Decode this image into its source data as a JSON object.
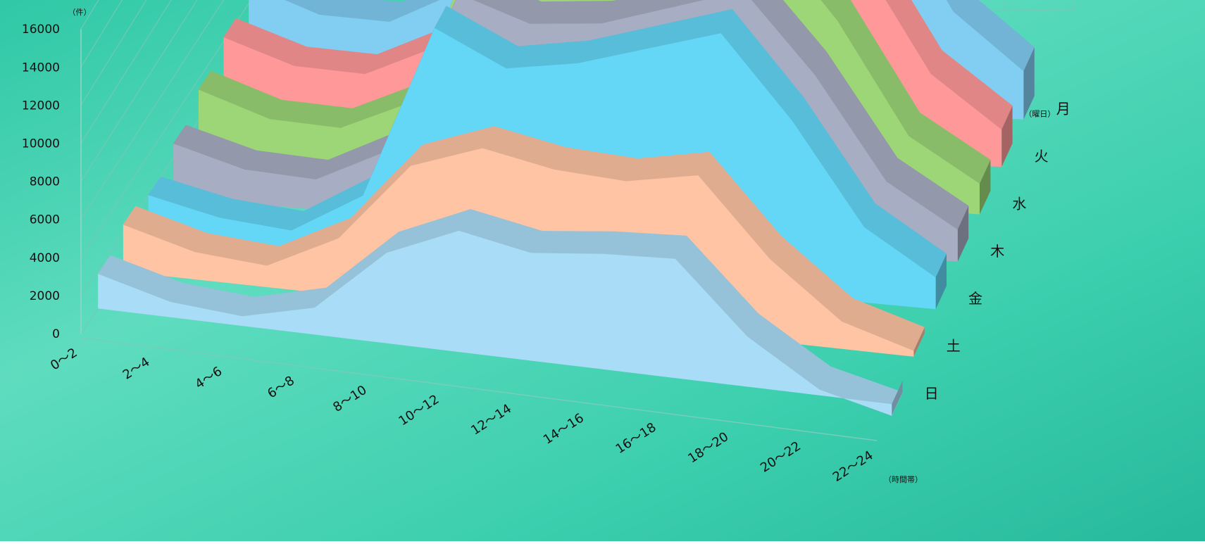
{
  "chart_data": {
    "type": "area",
    "title": "",
    "y_unit_label": "（件）",
    "x_axis_label": "（時間帯）",
    "z_axis_label": "（曜日）",
    "ylim": [
      0,
      16000
    ],
    "yticks": [
      0,
      2000,
      4000,
      6000,
      8000,
      10000,
      12000,
      14000,
      16000
    ],
    "categories": [
      "0～2",
      "2～4",
      "4～6",
      "6～8",
      "8～10",
      "10～12",
      "12～14",
      "14～16",
      "16～18",
      "18～20",
      "20～22",
      "22～24"
    ],
    "series": [
      {
        "name": "日",
        "color": "#a9dcf6",
        "values": [
          1800,
          800,
          500,
          1400,
          4700,
          6300,
          5600,
          6000,
          6200,
          2600,
          300,
          -600
        ]
      },
      {
        "name": "土",
        "color": "#ffc4a4",
        "values": [
          2400,
          1400,
          1100,
          2900,
          7000,
          8300,
          7600,
          7400,
          8100,
          4200,
          1400,
          300
        ]
      },
      {
        "name": "金",
        "color": "#64d7f7",
        "values": [
          2000,
          1200,
          900,
          3000,
          11800,
          10100,
          10700,
          11800,
          12900,
          8800,
          3800,
          1600
        ]
      },
      {
        "name": "木",
        "color": "#a7adc2",
        "values": [
          2700,
          1700,
          1500,
          3200,
          11300,
          10100,
          10400,
          11500,
          12600,
          8700,
          3700,
          1600
        ]
      },
      {
        "name": "水",
        "color": "#9cd677",
        "values": [
          3500,
          2300,
          2100,
          3600,
          12400,
          11000,
          10800,
          12300,
          13100,
          9000,
          3600,
          1500
        ]
      },
      {
        "name": "火",
        "color": "#ff9898",
        "values": [
          4200,
          3000,
          2800,
          4300,
          13600,
          11800,
          11000,
          12900,
          13600,
          9700,
          4300,
          1800
        ]
      },
      {
        "name": "月",
        "color": "#82cdf2",
        "values": [
          4900,
          3600,
          3400,
          5000,
          14500,
          12600,
          11800,
          13500,
          14200,
          10700,
          5000,
          2300
        ]
      }
    ],
    "grid": true,
    "legend": "none"
  }
}
